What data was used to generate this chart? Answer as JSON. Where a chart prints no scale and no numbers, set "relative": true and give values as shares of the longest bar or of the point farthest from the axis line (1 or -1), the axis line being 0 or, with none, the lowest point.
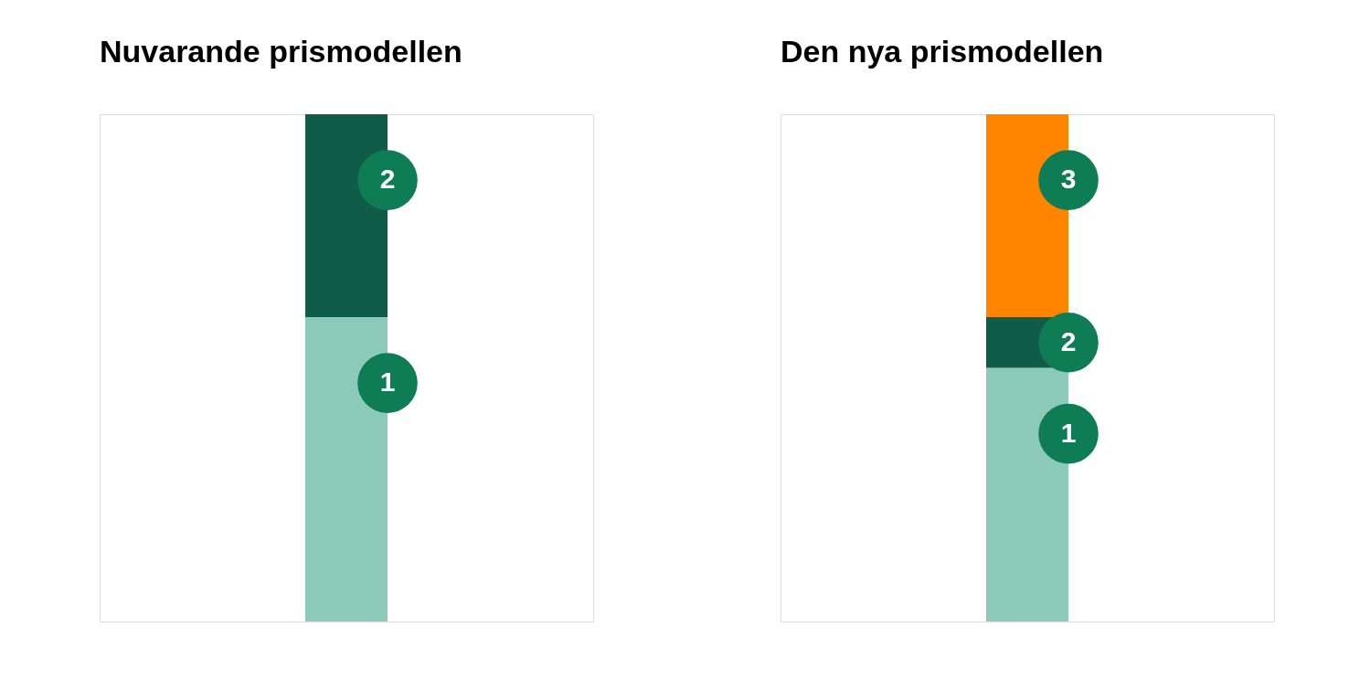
{
  "chart_data": [
    {
      "type": "bar",
      "title": "Nuvarande prismodellen",
      "categories": [
        null
      ],
      "stacked": true,
      "relative": true,
      "series": [
        {
          "name": "1",
          "color": "#8bc9b8",
          "values": [
            0.6
          ]
        },
        {
          "name": "2",
          "color": "#0f5c48",
          "values": [
            0.4
          ]
        }
      ]
    },
    {
      "type": "bar",
      "title": "Den nya prismodellen",
      "categories": [
        null
      ],
      "stacked": true,
      "relative": true,
      "series": [
        {
          "name": "1",
          "color": "#8bc9b8",
          "values": [
            0.5
          ]
        },
        {
          "name": "2",
          "color": "#0f5c48",
          "values": [
            0.1
          ]
        },
        {
          "name": "3",
          "color": "#ff8500",
          "values": [
            0.4
          ]
        }
      ]
    }
  ]
}
